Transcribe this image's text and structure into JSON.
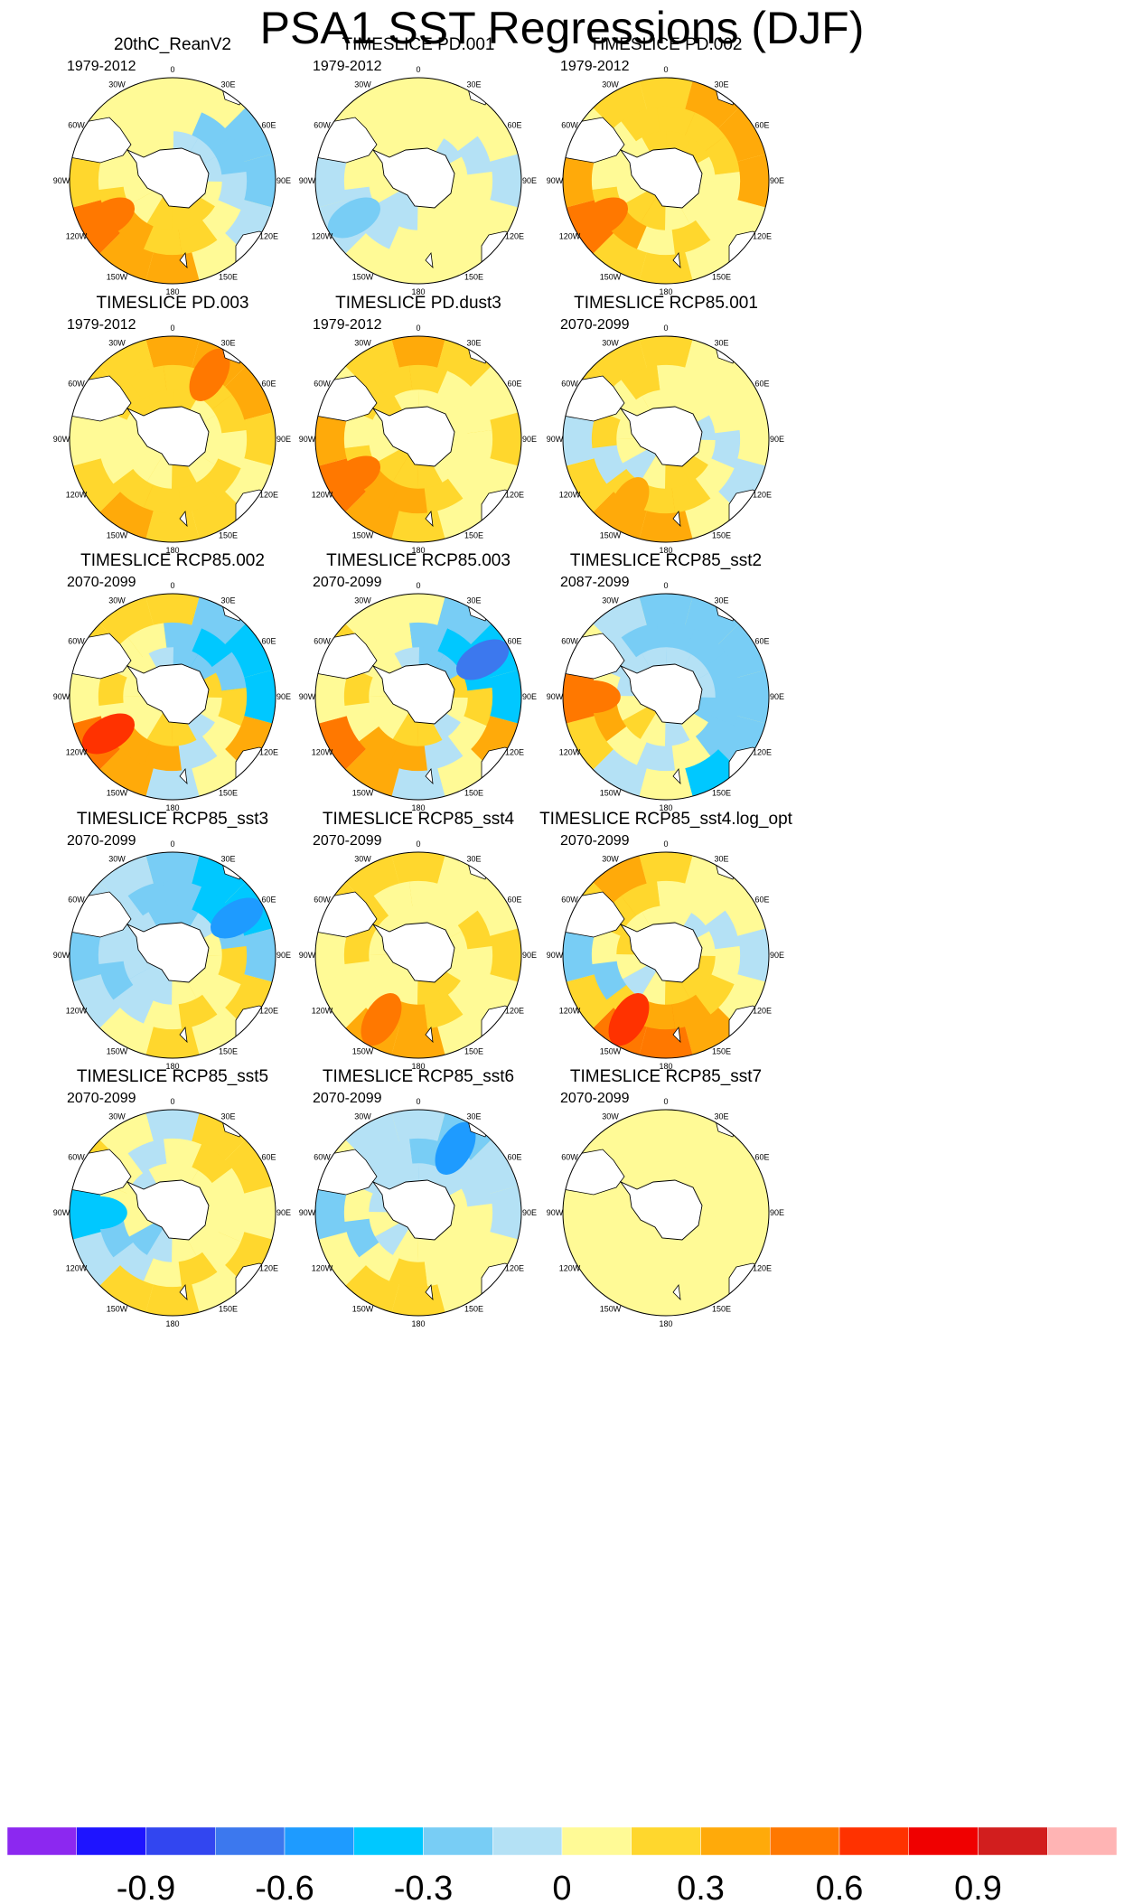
{
  "title": "PSA1 SST Regressions (DJF)",
  "chart_data": {
    "type": "contour-map-panels",
    "projection": "south-polar-stereographic",
    "variable": "SST regression onto PSA1",
    "season": "DJF",
    "longitude_labels": [
      "0",
      "30E",
      "60E",
      "90E",
      "120E",
      "150E",
      "180",
      "150W",
      "120W",
      "90W",
      "60W",
      "30W"
    ],
    "panels": [
      {
        "title": "20thC_ReanV2",
        "period": "1979-2012",
        "pattern": [
          0.1,
          0.0,
          -0.2,
          -0.3,
          -0.1,
          0.1,
          0.3,
          0.35,
          0.45,
          0.2,
          0.0,
          0.05
        ],
        "peak": 0.45
      },
      {
        "title": "TIMESLICE PD.001",
        "period": "1979-2012",
        "pattern": [
          0.05,
          0.05,
          0.0,
          -0.05,
          0.0,
          0.05,
          0.05,
          0.0,
          -0.1,
          -0.05,
          0.05,
          0.05
        ],
        "peak": 0.2
      },
      {
        "title": "TIMESLICE PD.002",
        "period": "1979-2012",
        "pattern": [
          0.25,
          0.3,
          0.35,
          0.3,
          0.1,
          0.0,
          0.25,
          0.15,
          0.45,
          0.3,
          0.1,
          0.15
        ],
        "peak": 0.55
      },
      {
        "title": "TIMESLICE PD.003",
        "period": "1979-2012",
        "pattern": [
          0.3,
          0.35,
          0.3,
          0.2,
          0.1,
          0.2,
          0.25,
          0.3,
          0.2,
          0.1,
          0.15,
          0.25
        ],
        "peak": 0.45
      },
      {
        "title": "TIMESLICE PD.dust3",
        "period": "1979-2012",
        "pattern": [
          0.3,
          0.2,
          0.1,
          0.15,
          0.0,
          0.05,
          0.25,
          0.4,
          0.45,
          0.3,
          0.1,
          0.2
        ],
        "peak": 0.5
      },
      {
        "title": "TIMESLICE RCP85.001",
        "period": "2070-2099",
        "pattern": [
          0.2,
          0.1,
          0.1,
          0.1,
          -0.1,
          0.0,
          0.3,
          0.35,
          0.25,
          -0.15,
          0.2,
          0.15
        ],
        "peak": 0.4
      },
      {
        "title": "TIMESLICE RCP85.002",
        "period": "2070-2099",
        "pattern": [
          0.15,
          -0.2,
          -0.4,
          -0.35,
          0.3,
          0.0,
          -0.1,
          0.4,
          0.45,
          0.1,
          0.2,
          0.15
        ],
        "peak": 0.7
      },
      {
        "title": "TIMESLICE RCP85.003",
        "period": "2070-2099",
        "pattern": [
          0.1,
          -0.3,
          -0.45,
          -0.4,
          0.3,
          0.0,
          -0.1,
          0.4,
          0.45,
          0.1,
          0.2,
          0.1
        ],
        "peak": 0.75
      },
      {
        "title": "TIMESLICE RCP85_sst2",
        "period": "2087-2099",
        "pattern": [
          -0.2,
          -0.25,
          -0.3,
          -0.2,
          -0.25,
          -0.35,
          0.1,
          -0.15,
          0.15,
          0.45,
          0.0,
          -0.1
        ],
        "peak": 0.55
      },
      {
        "title": "TIMESLICE RCP85_sst3",
        "period": "2070-2099",
        "pattern": [
          -0.2,
          -0.35,
          -0.4,
          -0.3,
          0.2,
          0.1,
          0.2,
          0.0,
          -0.1,
          -0.3,
          -0.1,
          -0.15
        ],
        "peak": 0.6
      },
      {
        "title": "TIMESLICE RCP85_sst4",
        "period": "2070-2099",
        "pattern": [
          0.15,
          0.05,
          0.1,
          0.2,
          0.1,
          0.0,
          0.35,
          0.4,
          0.1,
          0.05,
          0.2,
          0.2
        ],
        "peak": 0.5
      },
      {
        "title": "TIMESLICE RCP85_sst4.log_opt",
        "period": "2070-2099",
        "pattern": [
          0.2,
          0.1,
          0.0,
          -0.1,
          0.1,
          0.3,
          0.5,
          0.55,
          0.2,
          -0.2,
          0.15,
          0.3
        ],
        "peak": 0.65
      },
      {
        "title": "TIMESLICE RCP85_sst5",
        "period": "2070-2099",
        "pattern": [
          -0.1,
          0.15,
          0.2,
          0.1,
          0.15,
          0.1,
          0.2,
          0.15,
          -0.1,
          -0.35,
          0.15,
          0.1
        ],
        "peak": 0.45
      },
      {
        "title": "TIMESLICE RCP85_sst6",
        "period": "2070-2099",
        "pattern": [
          -0.15,
          -0.2,
          -0.15,
          -0.05,
          0.1,
          0.1,
          0.15,
          0.2,
          0.1,
          -0.2,
          0.1,
          -0.1
        ],
        "peak": 0.5
      },
      {
        "title": "TIMESLICE RCP85_sst7",
        "period": "2070-2099",
        "pattern": [
          0.05,
          0.05,
          0.05,
          0.05,
          0.05,
          0.05,
          0.05,
          0.05,
          0.05,
          0.05,
          0.05,
          0.05
        ],
        "peak": 0.05
      }
    ],
    "colorbar": {
      "levels": [
        -1.05,
        -0.9,
        -0.75,
        -0.6,
        -0.45,
        -0.3,
        -0.15,
        0,
        0.15,
        0.3,
        0.45,
        0.6,
        0.75,
        0.9,
        1.05
      ],
      "colors": [
        "#8c28f0",
        "#1e14ff",
        "#3246f0",
        "#3c78ee",
        "#1e9bff",
        "#00c8ff",
        "#78cdf5",
        "#b4e1f5",
        "#fffa96",
        "#ffd72d",
        "#ffaa0a",
        "#ff7800",
        "#ff3200",
        "#f00000",
        "#d21e1e",
        "#ffb4b4"
      ],
      "tick_labels": [
        "-0.9",
        "-0.6",
        "-0.3",
        "0",
        "0.3",
        "0.6",
        "0.9"
      ],
      "tick_values": [
        -0.9,
        -0.6,
        -0.3,
        0,
        0.3,
        0.6,
        0.9
      ]
    }
  }
}
